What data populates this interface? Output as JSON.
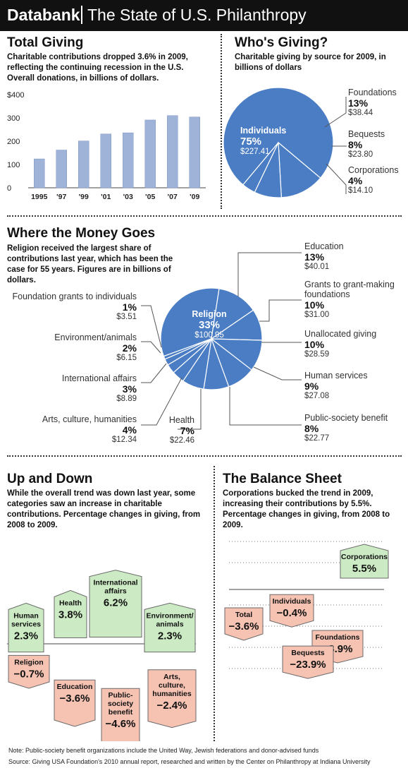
{
  "header": {
    "brand": "Databank",
    "title": "The State of U.S. Philanthropy"
  },
  "total_giving": {
    "title": "Total Giving",
    "desc": "Charitable contributions dropped 3.6% in 2009, reflecting the continuing recession in the U.S. Overall donations, in billions of dollars."
  },
  "whos_giving": {
    "title": "Who's Giving?",
    "desc": "Charitable giving by source for 2009, in billions of dollars"
  },
  "where_money": {
    "title": "Where the Money Goes",
    "desc": "Religion received the largest share of contributions last year, which has been the case for 55 years. Figures are in billions of dollars."
  },
  "up_down": {
    "title": "Up and Down",
    "desc": "While the overall trend was down last year, some categories saw an increase in charitable contributions. Percentage changes in giving, from 2008 to 2009."
  },
  "balance": {
    "title": "The Balance Sheet",
    "desc": "Corporations bucked the trend in 2009, increasing their contributions by 5.5%. Percentage changes in giving, from 2008 to 2009."
  },
  "footer": {
    "note": "Note: Public-society benefit organizations include the United Way, Jewish federations and donor-advised funds",
    "source": "Source: Giving USA Foundation's 2010 annual report, researched and written by the Center on Philanthropy at Indiana University"
  },
  "colors": {
    "bar": "#9fb3d9",
    "pie": "#4a7dc4",
    "up": "#ccebc4",
    "down": "#f6c3b3"
  },
  "chart_data": [
    {
      "type": "bar",
      "categories": [
        "1995",
        "'97",
        "'99",
        "'01",
        "'03",
        "'05",
        "'07",
        "'09"
      ],
      "values": [
        124,
        162,
        201,
        231,
        236,
        291,
        310,
        304
      ],
      "ylim": [
        0,
        400
      ],
      "yticks": [
        "$400",
        "300",
        "200",
        "100",
        "0"
      ],
      "grid": false
    },
    {
      "type": "pie",
      "slices": [
        {
          "name": "Individuals",
          "pct": "75%",
          "value": "$227.41",
          "share": 75
        },
        {
          "name": "Foundations",
          "pct": "13%",
          "value": "$38.44",
          "share": 13
        },
        {
          "name": "Bequests",
          "pct": "8%",
          "value": "$23.80",
          "share": 8
        },
        {
          "name": "Corporations",
          "pct": "4%",
          "value": "$14.10",
          "share": 4
        }
      ]
    },
    {
      "type": "pie",
      "slices": [
        {
          "name": "Religion",
          "pct": "33%",
          "value": "$100.95",
          "share": 33
        },
        {
          "name": "Education",
          "pct": "13%",
          "value": "$40.01",
          "share": 13
        },
        {
          "name": "Grants to grant-making foundations",
          "pct": "10%",
          "value": "$31.00",
          "share": 10
        },
        {
          "name": "Unallocated giving",
          "pct": "10%",
          "value": "$28.59",
          "share": 10
        },
        {
          "name": "Human services",
          "pct": "9%",
          "value": "$27.08",
          "share": 9
        },
        {
          "name": "Public-society benefit",
          "pct": "8%",
          "value": "$22.77",
          "share": 8
        },
        {
          "name": "Health",
          "pct": "7%",
          "value": "$22.46",
          "share": 7
        },
        {
          "name": "Arts, culture, humanities",
          "pct": "4%",
          "value": "$12.34",
          "share": 4
        },
        {
          "name": "International affairs",
          "pct": "3%",
          "value": "$8.89",
          "share": 3
        },
        {
          "name": "Environment/animals",
          "pct": "2%",
          "value": "$6.15",
          "share": 2
        },
        {
          "name": "Foundation grants to individuals",
          "pct": "1%",
          "value": "$3.51",
          "share": 1
        }
      ]
    },
    {
      "type": "bar",
      "items": [
        {
          "name": "Human services",
          "label": "2.3%",
          "value": 2.3
        },
        {
          "name": "Health",
          "label": "3.8%",
          "value": 3.8
        },
        {
          "name": "International affairs",
          "label": "6.2%",
          "value": 6.2
        },
        {
          "name": "Environment/ animals",
          "label": "2.3%",
          "value": 2.3
        },
        {
          "name": "Religion",
          "label": "−0.7%",
          "value": -0.7
        },
        {
          "name": "Education",
          "label": "−3.6%",
          "value": -3.6
        },
        {
          "name": "Public- society benefit",
          "label": "−4.6%",
          "value": -4.6
        },
        {
          "name": "Arts, culture, humanities",
          "label": "−2.4%",
          "value": -2.4
        }
      ]
    },
    {
      "type": "bar",
      "items": [
        {
          "name": "Corporations",
          "label": "5.5%",
          "value": 5.5
        },
        {
          "name": "Individuals",
          "label": "−0.4%",
          "value": -0.4
        },
        {
          "name": "Total",
          "label": "−3.6%",
          "value": -3.6
        },
        {
          "name": "Foundations",
          "label": "−8.9%",
          "value": -8.9
        },
        {
          "name": "Bequests",
          "label": "−23.9%",
          "value": -23.9
        }
      ]
    }
  ]
}
